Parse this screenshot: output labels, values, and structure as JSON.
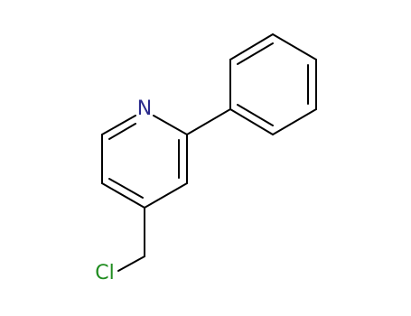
{
  "atoms": [
    {
      "label": "N"
    },
    {
      "label": "Cl"
    }
  ]
}
